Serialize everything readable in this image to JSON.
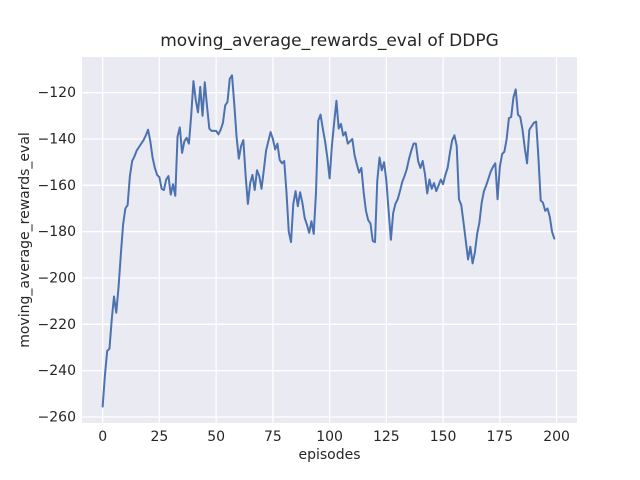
{
  "chart_data": {
    "type": "line",
    "title": "moving_average_rewards_eval of DDPG",
    "xlabel": "episodes",
    "ylabel": "moving_average_rewards_eval",
    "legend_position": "none",
    "grid": true,
    "xlim": [
      -9.1,
      209.0
    ],
    "ylim": [
      -262.6,
      -104.6
    ],
    "x_ticks": [
      0,
      25,
      50,
      75,
      100,
      125,
      150,
      175,
      200
    ],
    "x_tick_labels": [
      "0",
      "25",
      "50",
      "75",
      "100",
      "125",
      "150",
      "175",
      "200"
    ],
    "y_ticks": [
      -120,
      -140,
      -160,
      -180,
      -200,
      -220,
      -240,
      -260
    ],
    "y_tick_labels": [
      "−120",
      "−140",
      "−160",
      "−180",
      "−200",
      "−220",
      "−240",
      "−260"
    ],
    "style": {
      "fig_bg": "#ffffff",
      "axes_bg": "#eaeaf2",
      "grid_color": "#ffffff",
      "text_color": "#262626",
      "line_color": "#4c72b0"
    },
    "series": [
      {
        "name": "moving_average_rewards_eval",
        "color": "#4c72b0",
        "x_start": 0,
        "x_step": 1,
        "n_points": 200,
        "values": [
          -255.5,
          -242,
          -231.5,
          -230.5,
          -218,
          -208,
          -215,
          -204,
          -190,
          -177,
          -170,
          -168.5,
          -156,
          -149.5,
          -147.5,
          -145,
          -143.5,
          -142,
          -140.5,
          -138.5,
          -136,
          -141,
          -148,
          -152.5,
          -155.5,
          -156.5,
          -161.5,
          -162,
          -157.5,
          -156,
          -164,
          -159.5,
          -164.5,
          -139,
          -135,
          -146,
          -141,
          -139.5,
          -142,
          -130,
          -115,
          -123,
          -128.5,
          -117.5,
          -130,
          -115.5,
          -126,
          -135.5,
          -136.5,
          -136.5,
          -136.5,
          -138,
          -136,
          -133,
          -125.5,
          -124,
          -114,
          -112.5,
          -125,
          -139,
          -148.5,
          -143,
          -140.5,
          -156,
          -168,
          -159,
          -155.5,
          -162,
          -153.5,
          -156,
          -161.5,
          -153.5,
          -145,
          -141,
          -137,
          -140,
          -144.5,
          -142,
          -149,
          -150.5,
          -149.5,
          -163,
          -180,
          -184.5,
          -168,
          -162.5,
          -169,
          -163,
          -167.5,
          -174,
          -177,
          -180.5,
          -175.5,
          -181,
          -163,
          -132,
          -129.5,
          -135.5,
          -141,
          -148,
          -157,
          -143,
          -133,
          -123.5,
          -135.5,
          -133.5,
          -138.5,
          -137,
          -142,
          -141,
          -140,
          -147,
          -151,
          -154.5,
          -152.5,
          -163,
          -171,
          -175,
          -176.5,
          -184,
          -184.5,
          -158,
          -148,
          -153.5,
          -150,
          -158,
          -171,
          -183.5,
          -172,
          -168,
          -166,
          -162.5,
          -158.5,
          -156,
          -153,
          -148.5,
          -145,
          -142,
          -142,
          -149.5,
          -152.5,
          -149.5,
          -155,
          -163.5,
          -157.5,
          -161.5,
          -159,
          -162.5,
          -160,
          -157.5,
          -159.5,
          -155.5,
          -152.5,
          -146,
          -140.5,
          -138.4,
          -143,
          -166,
          -168.5,
          -176,
          -184,
          -192,
          -186.5,
          -193.7,
          -189,
          -181,
          -176,
          -167.5,
          -162.5,
          -160,
          -157,
          -154,
          -152,
          -150.5,
          -166,
          -152,
          -146.5,
          -145.5,
          -140,
          -131,
          -130.5,
          -122,
          -118.6,
          -129.5,
          -130.5,
          -136,
          -144,
          -150.5,
          -136,
          -134.5,
          -133,
          -132.5,
          -148,
          -166.5,
          -167.5,
          -171,
          -170,
          -173.5,
          -180,
          -183
        ]
      }
    ]
  }
}
